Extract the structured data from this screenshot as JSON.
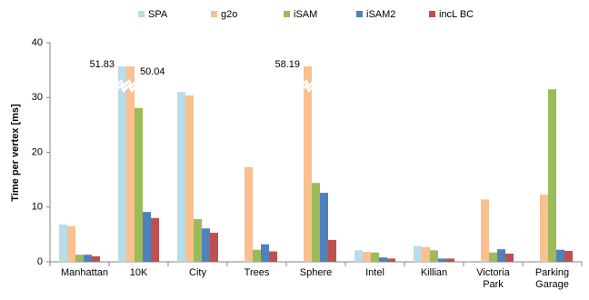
{
  "chart_data": {
    "type": "bar",
    "y_label": "Time per vertex [ms]",
    "categories": [
      "Manhattan",
      "10K",
      "City",
      "Trees",
      "Sphere",
      "Intel",
      "Killian",
      "Victoria Park",
      "Parking Garage"
    ],
    "series": [
      {
        "name": "SPA",
        "color": "#b7dde8",
        "values": [
          6.8,
          51.83,
          31.0,
          null,
          null,
          2.1,
          2.9,
          null,
          null
        ],
        "value_labels": [
          null,
          "51.83",
          null,
          null,
          null,
          null,
          null,
          null,
          null
        ]
      },
      {
        "name": "g2o",
        "color": "#fac090",
        "values": [
          6.5,
          50.04,
          30.4,
          17.3,
          58.19,
          1.8,
          2.7,
          11.4,
          12.3
        ],
        "value_labels": [
          null,
          "50.04",
          null,
          null,
          "58.19",
          null,
          null,
          null,
          null
        ]
      },
      {
        "name": "iSAM",
        "color": "#9bbb59",
        "values": [
          1.3,
          28.1,
          7.8,
          2.2,
          14.4,
          1.7,
          2.1,
          1.7,
          31.5
        ]
      },
      {
        "name": "iSAM2",
        "color": "#4f81bd",
        "values": [
          1.3,
          9.1,
          6.1,
          3.2,
          12.6,
          0.8,
          0.6,
          2.3,
          2.2
        ]
      },
      {
        "name": "incL BC",
        "color": "#c0504d",
        "values": [
          1.0,
          8.0,
          5.3,
          1.9,
          4.0,
          0.6,
          0.6,
          1.5,
          2.0
        ]
      }
    ],
    "ylim": [
      0,
      40
    ],
    "yticks": [
      0,
      10,
      20,
      30,
      40
    ],
    "grid": false,
    "legend": "top"
  }
}
